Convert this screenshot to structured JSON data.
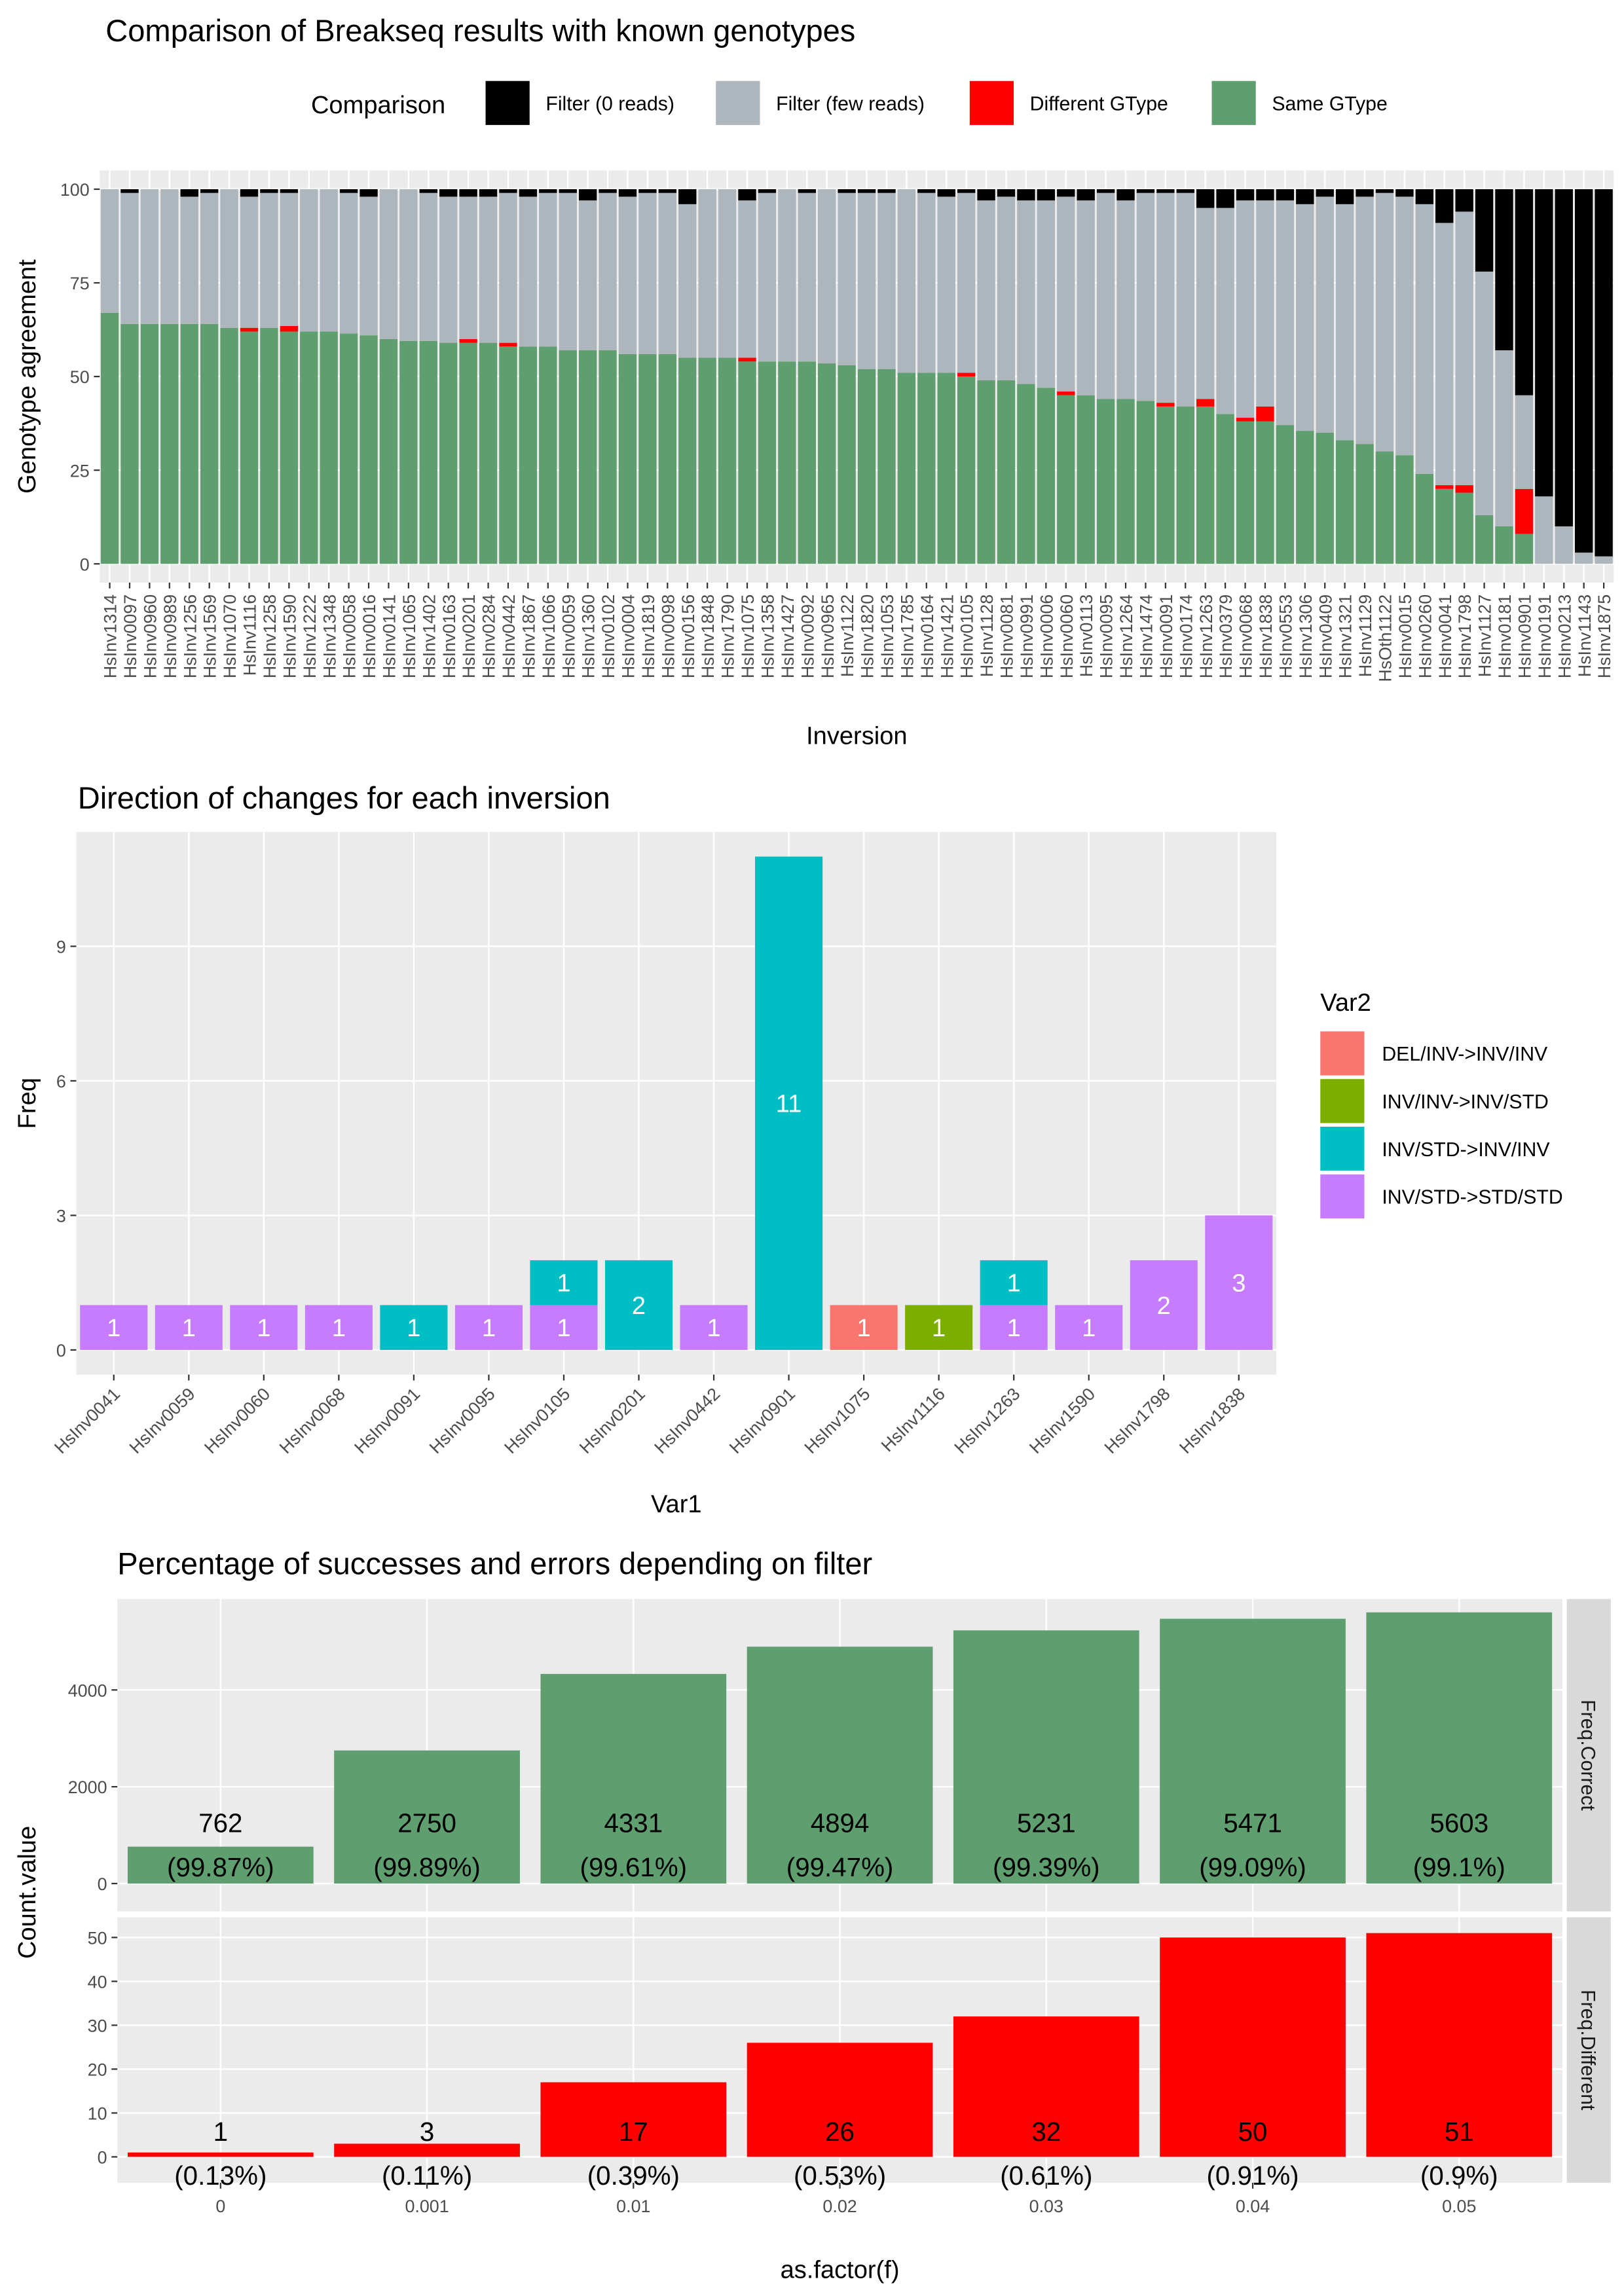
{
  "chart_data": [
    {
      "type": "stacked_bar",
      "title": "Comparison of Breakseq results with known genotypes",
      "x_label": "Inversion",
      "y_label": "Genotype agreement",
      "legend_title": "Comparison",
      "legend": "top",
      "grid": true,
      "categories": [
        "HsInv1314",
        "HsInv0097",
        "HsInv0960",
        "HsInv0989",
        "HsInv1256",
        "HsInv1569",
        "HsInv1070",
        "HsInv1116",
        "HsInv1258",
        "HsInv1590",
        "HsInv1222",
        "HsInv1348",
        "HsInv0058",
        "HsInv0016",
        "HsInv0141",
        "HsInv1065",
        "HsInv1402",
        "HsInv0163",
        "HsInv0201",
        "HsInv0284",
        "HsInv0442",
        "HsInv1867",
        "HsInv1066",
        "HsInv0059",
        "HsInv1360",
        "HsInv0102",
        "HsInv0004",
        "HsInv1819",
        "HsInv0098",
        "HsInv0156",
        "HsInv1848",
        "HsInv1790",
        "HsInv1075",
        "HsInv1358",
        "HsInv1427",
        "HsInv0092",
        "HsInv0965",
        "HsInv1122",
        "HsInv1820",
        "HsInv1053",
        "HsInv1785",
        "HsInv0164",
        "HsInv1421",
        "HsInv0105",
        "HsInv1128",
        "HsInv0081",
        "HsInv0991",
        "HsInv0006",
        "HsInv0060",
        "HsInv0113",
        "HsInv0095",
        "HsInv1264",
        "HsInv1474",
        "HsInv0091",
        "HsInv0174",
        "HsInv1263",
        "HsInv0379",
        "HsInv0068",
        "HsInv1838",
        "HsInv0553",
        "HsInv1306",
        "HsInv0409",
        "HsInv1321",
        "HsInv1129",
        "HsOth1122",
        "HsInv0015",
        "HsInv0260",
        "HsInv0041",
        "HsInv1798",
        "HsInv1127",
        "HsInv0181",
        "HsInv0901",
        "HsInv0191",
        "HsInv0213",
        "HsInv1143",
        "HsInv1875"
      ],
      "legend_order": [
        3,
        2,
        1,
        0
      ],
      "series": [
        {
          "name": "Same GType",
          "color": "#5f9e6e",
          "values": [
            67,
            64,
            64,
            64,
            64,
            64,
            63,
            62,
            63,
            62,
            62,
            62,
            61.5,
            61,
            60,
            59.5,
            59.5,
            59,
            59,
            59,
            58,
            58,
            58,
            57,
            57,
            57,
            56,
            56,
            56,
            55,
            55,
            55,
            54,
            54,
            54,
            54,
            53.5,
            53,
            52,
            52,
            51,
            51,
            51,
            50,
            49,
            49,
            48,
            47,
            45,
            45,
            44,
            44,
            43.5,
            42,
            42,
            42,
            40,
            38,
            38,
            37,
            35.5,
            35,
            33,
            32,
            30,
            29,
            24,
            20,
            19,
            13,
            10,
            8,
            0,
            0,
            0,
            0
          ]
        },
        {
          "name": "Different GType",
          "color": "#ff0000",
          "values": [
            0,
            0,
            0,
            0,
            0,
            0,
            0,
            1,
            0,
            1.5,
            0,
            0,
            0,
            0,
            0,
            0,
            0,
            0,
            1,
            0,
            1,
            0,
            0,
            0,
            0,
            0,
            0,
            0,
            0,
            0,
            0,
            0,
            1,
            0,
            0,
            0,
            0,
            0,
            0,
            0,
            0,
            0,
            0,
            1,
            0,
            0,
            0,
            0,
            1,
            0,
            0,
            0,
            0,
            1,
            0,
            2,
            0,
            1,
            4,
            0,
            0,
            0,
            0,
            0,
            0,
            0,
            0,
            1,
            2,
            0,
            0,
            12,
            0,
            0,
            0,
            0
          ]
        },
        {
          "name": "Filter (few reads)",
          "color": "#adb5bd",
          "values": [
            33,
            35,
            36,
            36,
            34,
            35,
            37,
            35,
            36,
            35.5,
            38,
            38,
            37.5,
            37,
            40,
            40.5,
            39.5,
            39,
            38,
            39,
            40,
            40,
            41,
            42,
            40,
            42,
            42,
            43,
            43,
            41,
            45,
            45,
            42,
            45,
            46,
            45,
            46.5,
            46,
            47,
            47,
            49,
            48,
            47,
            48,
            48,
            49,
            49,
            50,
            52,
            52,
            55,
            53,
            55.5,
            56,
            57,
            51,
            55,
            58,
            55,
            60,
            60.5,
            63,
            63,
            66,
            69,
            69,
            72,
            70,
            73,
            65,
            47,
            25,
            18,
            10,
            3,
            2
          ]
        },
        {
          "name": "Filter (0 reads)",
          "color": "#000000",
          "values": [
            0,
            1,
            0,
            0,
            2,
            1,
            0,
            2,
            1,
            1,
            0,
            0,
            1,
            2,
            0,
            0,
            1,
            2,
            2,
            2,
            1,
            2,
            1,
            1,
            3,
            1,
            2,
            1,
            1,
            4,
            0,
            0,
            3,
            1,
            0,
            1,
            0,
            1,
            1,
            1,
            0,
            1,
            2,
            1,
            3,
            2,
            3,
            3,
            2,
            3,
            1,
            3,
            1,
            1,
            1,
            5,
            5,
            3,
            3,
            3,
            4,
            2,
            4,
            2,
            1,
            2,
            4,
            9,
            6,
            22,
            43,
            55,
            82,
            90,
            97,
            98
          ]
        }
      ],
      "ylim": [
        -5,
        105
      ],
      "yticks": [
        0,
        25,
        50,
        75,
        100
      ]
    },
    {
      "type": "stacked_bar",
      "title": "Direction of changes for each inversion",
      "x_label": "Var1",
      "y_label": "Freq",
      "legend_title": "Var2",
      "legend": "right",
      "grid": true,
      "data_labels": true,
      "categories": [
        "HsInv0041",
        "HsInv0059",
        "HsInv0060",
        "HsInv0068",
        "HsInv0091",
        "HsInv0095",
        "HsInv0105",
        "HsInv0201",
        "HsInv0442",
        "HsInv0901",
        "HsInv1075",
        "HsInv1116",
        "HsInv1263",
        "HsInv1590",
        "HsInv1798",
        "HsInv1838"
      ],
      "legend_order": [
        0,
        1,
        2,
        3
      ],
      "series": [
        {
          "name": "INV/STD->STD/STD",
          "color": "#c77cff",
          "values": [
            1,
            1,
            1,
            1,
            null,
            1,
            1,
            null,
            1,
            null,
            null,
            null,
            1,
            1,
            2,
            3
          ]
        },
        {
          "name": "INV/STD->INV/INV",
          "color": "#00bfc4",
          "values": [
            null,
            null,
            null,
            null,
            1,
            null,
            1,
            2,
            null,
            11,
            null,
            null,
            1,
            null,
            null,
            null
          ]
        },
        {
          "name": "INV/INV->INV/STD",
          "color": "#7cae00",
          "values": [
            null,
            null,
            null,
            null,
            null,
            null,
            null,
            null,
            null,
            null,
            null,
            1,
            null,
            null,
            null,
            null
          ]
        },
        {
          "name": "DEL/INV->INV/INV",
          "color": "#f8766d",
          "values": [
            null,
            null,
            null,
            null,
            null,
            null,
            null,
            null,
            null,
            null,
            1,
            null,
            null,
            null,
            null,
            null
          ]
        }
      ],
      "ylim": [
        -0.55,
        11.55
      ],
      "yticks": [
        0,
        3,
        6,
        9
      ]
    },
    {
      "type": "bar",
      "title": "Percentage of successes and errors depending on filter",
      "x_label": "as.factor(f)",
      "y_label": "Count.value",
      "grid": true,
      "categories": [
        "0",
        "0.001",
        "0.01",
        "0.02",
        "0.03",
        "0.04",
        "0.05"
      ],
      "facets": [
        {
          "name": "Freq.Correct",
          "color": "#5f9e6e",
          "values": [
            762,
            2750,
            4331,
            4894,
            5231,
            5471,
            5603
          ],
          "percent_labels": [
            "(99.87%)",
            "(99.89%)",
            "(99.61%)",
            "(99.47%)",
            "(99.39%)",
            "(99.09%)",
            "(99.1%)"
          ],
          "ylim": [
            -576,
            5879
          ],
          "yticks": [
            0,
            2000,
            4000
          ]
        },
        {
          "name": "Freq.Different",
          "color": "#ff0000",
          "values": [
            1,
            3,
            17,
            26,
            32,
            50,
            51
          ],
          "percent_labels": [
            "(0.13%)",
            "(0.11%)",
            "(0.39%)",
            "(0.53%)",
            "(0.61%)",
            "(0.91%)",
            "(0.9%)"
          ],
          "ylim": [
            -5.9,
            54.6
          ],
          "yticks": [
            0,
            10,
            20,
            30,
            40,
            50
          ]
        }
      ]
    }
  ]
}
